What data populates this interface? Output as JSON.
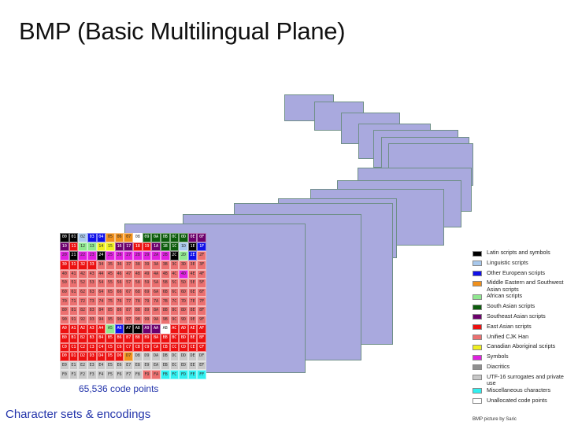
{
  "title": "BMP (Basic Multilingual Plane)",
  "caption": "65,536 code points",
  "footer": "Character sets & encodings",
  "credit": "BMP picture by Saric",
  "legend": [
    {
      "label": "Latin scripts and symbols",
      "color": "#000000"
    },
    {
      "label": "Linguistic scripts",
      "color": "#a8c8ec"
    },
    {
      "label": "Other European scripts",
      "color": "#1010e8"
    },
    {
      "label": "Middle Eastern and Southwest Asian scripts",
      "color": "#f0901c"
    },
    {
      "label": "African scripts",
      "color": "#90e890"
    },
    {
      "label": "South Asian scripts",
      "color": "#0c5c0c"
    },
    {
      "label": "Southeast Asian scripts",
      "color": "#6c006c"
    },
    {
      "label": "East Asian scripts",
      "color": "#ec1010"
    },
    {
      "label": "Unified CJK Han",
      "color": "#ec7070"
    },
    {
      "label": "Canadian Aboriginal scripts",
      "color": "#f0f020"
    },
    {
      "label": "Symbols",
      "color": "#e020e0"
    },
    {
      "label": "Diacritics",
      "color": "#909090"
    },
    {
      "label": "UTF-16 surrogates and private use",
      "color": "#c8c8c8"
    },
    {
      "label": "Miscellaneous characters",
      "color": "#30f0f0"
    },
    {
      "label": "Unallocated code points",
      "color": "#ffffff"
    }
  ],
  "grid_colors": {
    "latin": "#000000",
    "linguistic": "#a8c8ec",
    "european": "#1010e8",
    "mideast": "#f0901c",
    "african": "#90e890",
    "southasian": "#0c5c0c",
    "seasian": "#6c006c",
    "eastasian": "#ec1010",
    "cjk": "#ec7070",
    "canadian": "#f0f020",
    "symbols": "#e020e0",
    "diacritics": "#909090",
    "surrogate": "#c8c8c8",
    "misc": "#30f0f0",
    "unalloc": "#ffffff"
  },
  "grid_rows": [
    [
      "latin",
      "latin",
      "linguistic",
      "european",
      "european",
      "mideast",
      "mideast",
      "mideast",
      "unalloc",
      "southasian",
      "southasian",
      "southasian",
      "southasian",
      "southasian",
      "seasian",
      "seasian"
    ],
    [
      "seasian",
      "eastasian",
      "african",
      "african",
      "canadian",
      "canadian",
      "seasian",
      "seasian",
      "eastasian",
      "eastasian",
      "seasian",
      "southasian",
      "southasian",
      "linguistic",
      "latin",
      "european"
    ],
    [
      "symbols",
      "latin",
      "symbols",
      "symbols",
      "latin",
      "symbols",
      "symbols",
      "symbols",
      "symbols",
      "symbols",
      "symbols",
      "symbols",
      "latin",
      "african",
      "european",
      "cjk"
    ],
    [
      "eastasian",
      "eastasian",
      "eastasian",
      "eastasian",
      "cjk",
      "cjk",
      "cjk",
      "cjk",
      "cjk",
      "cjk",
      "cjk",
      "cjk",
      "cjk",
      "cjk",
      "cjk",
      "cjk"
    ],
    [
      "cjk",
      "cjk",
      "cjk",
      "cjk",
      "cjk",
      "cjk",
      "cjk",
      "cjk",
      "cjk",
      "cjk",
      "cjk",
      "cjk",
      "cjk",
      "symbols",
      "cjk",
      "cjk"
    ],
    [
      "cjk",
      "cjk",
      "cjk",
      "cjk",
      "cjk",
      "cjk",
      "cjk",
      "cjk",
      "cjk",
      "cjk",
      "cjk",
      "cjk",
      "cjk",
      "cjk",
      "cjk",
      "cjk"
    ],
    [
      "cjk",
      "cjk",
      "cjk",
      "cjk",
      "cjk",
      "cjk",
      "cjk",
      "cjk",
      "cjk",
      "cjk",
      "cjk",
      "cjk",
      "cjk",
      "cjk",
      "cjk",
      "cjk"
    ],
    [
      "cjk",
      "cjk",
      "cjk",
      "cjk",
      "cjk",
      "cjk",
      "cjk",
      "cjk",
      "cjk",
      "cjk",
      "cjk",
      "cjk",
      "cjk",
      "cjk",
      "cjk",
      "cjk"
    ],
    [
      "cjk",
      "cjk",
      "cjk",
      "cjk",
      "cjk",
      "cjk",
      "cjk",
      "cjk",
      "cjk",
      "cjk",
      "cjk",
      "cjk",
      "cjk",
      "cjk",
      "cjk",
      "cjk"
    ],
    [
      "cjk",
      "cjk",
      "cjk",
      "cjk",
      "cjk",
      "cjk",
      "cjk",
      "cjk",
      "cjk",
      "cjk",
      "cjk",
      "cjk",
      "cjk",
      "cjk",
      "cjk",
      "cjk"
    ],
    [
      "eastasian",
      "eastasian",
      "eastasian",
      "eastasian",
      "eastasian",
      "african",
      "european",
      "latin",
      "latin",
      "seasian",
      "seasian",
      "unalloc",
      "eastasian",
      "eastasian",
      "eastasian",
      "eastasian"
    ],
    [
      "eastasian",
      "eastasian",
      "eastasian",
      "eastasian",
      "eastasian",
      "eastasian",
      "eastasian",
      "eastasian",
      "eastasian",
      "eastasian",
      "eastasian",
      "eastasian",
      "eastasian",
      "eastasian",
      "eastasian",
      "eastasian"
    ],
    [
      "eastasian",
      "eastasian",
      "eastasian",
      "eastasian",
      "eastasian",
      "eastasian",
      "eastasian",
      "eastasian",
      "eastasian",
      "eastasian",
      "eastasian",
      "eastasian",
      "eastasian",
      "eastasian",
      "eastasian",
      "eastasian"
    ],
    [
      "eastasian",
      "eastasian",
      "eastasian",
      "eastasian",
      "eastasian",
      "eastasian",
      "eastasian",
      "mideast",
      "surrogate",
      "surrogate",
      "surrogate",
      "surrogate",
      "surrogate",
      "surrogate",
      "surrogate",
      "surrogate"
    ],
    [
      "surrogate",
      "surrogate",
      "surrogate",
      "surrogate",
      "surrogate",
      "surrogate",
      "surrogate",
      "surrogate",
      "surrogate",
      "surrogate",
      "surrogate",
      "surrogate",
      "surrogate",
      "surrogate",
      "surrogate",
      "surrogate"
    ],
    [
      "surrogate",
      "surrogate",
      "surrogate",
      "surrogate",
      "surrogate",
      "surrogate",
      "surrogate",
      "surrogate",
      "surrogate",
      "cjk",
      "cjk",
      "misc",
      "misc",
      "misc",
      "misc",
      "misc"
    ]
  ]
}
